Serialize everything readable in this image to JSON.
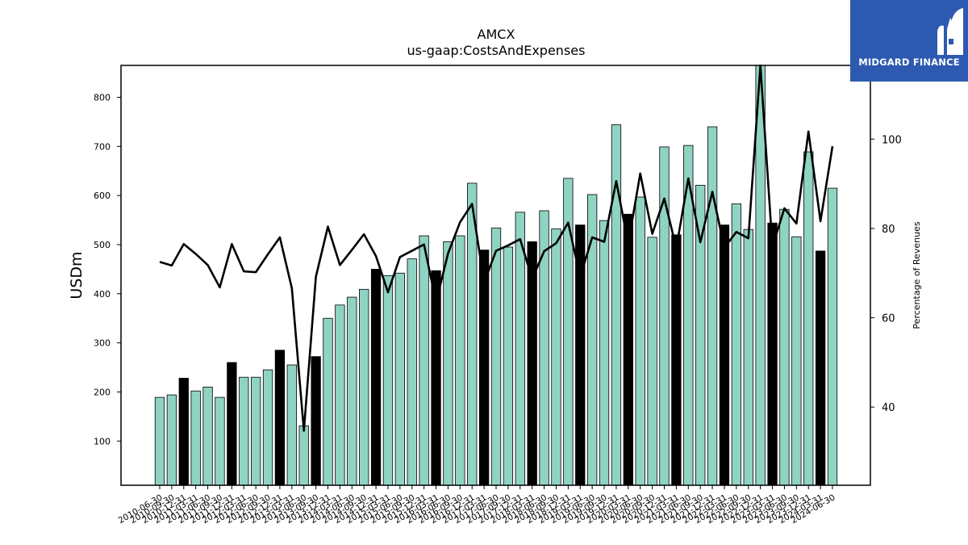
{
  "logo": {
    "text": "MIDGARD FINANCE",
    "background": "#2d5ab0"
  },
  "chart_data": {
    "type": "bar",
    "title": "AMCX",
    "subtitle": "us-gaap:CostsAndExpenses",
    "ylabel": "USDm",
    "y2label": "Percentage of Revenues",
    "ylim": [
      10,
      865
    ],
    "y2lim": [
      22.5,
      116.5
    ],
    "yticks": [
      100,
      200,
      300,
      400,
      500,
      600,
      700,
      800
    ],
    "y2ticks": [
      40,
      60,
      80,
      100
    ],
    "colors": {
      "bar": "#8fd3c3",
      "bar_highlight": "#000000",
      "line": "#000000",
      "edge": "#000000"
    },
    "categories": [
      "2010-06-30",
      "2010-09-30",
      "2010-12-31",
      "2011-03-31",
      "2011-06-30",
      "2011-09-30",
      "2011-12-31",
      "2012-03-31",
      "2012-06-30",
      "2012-09-30",
      "2012-12-31",
      "2013-03-31",
      "2013-06-30",
      "2013-09-30",
      "2013-12-31",
      "2014-03-31",
      "2014-06-30",
      "2014-09-30",
      "2014-12-31",
      "2015-03-31",
      "2015-06-30",
      "2015-09-30",
      "2015-12-31",
      "2016-03-31",
      "2016-06-30",
      "2016-09-30",
      "2016-12-31",
      "2017-03-31",
      "2017-06-30",
      "2017-09-30",
      "2017-12-31",
      "2018-03-31",
      "2018-06-30",
      "2018-09-30",
      "2018-12-31",
      "2019-03-31",
      "2019-06-30",
      "2019-09-30",
      "2019-12-31",
      "2020-03-31",
      "2020-06-30",
      "2020-09-30",
      "2020-12-31",
      "2021-03-31",
      "2021-06-30",
      "2021-09-30",
      "2021-12-31",
      "2022-03-31",
      "2022-06-30",
      "2022-09-30",
      "2022-12-31",
      "2023-03-31",
      "2023-06-30",
      "2023-09-30",
      "2023-12-31",
      "2024-03-31",
      "2024-06-30"
    ],
    "highlight": [
      false,
      false,
      true,
      false,
      false,
      false,
      true,
      false,
      false,
      false,
      true,
      false,
      false,
      true,
      false,
      false,
      false,
      false,
      true,
      false,
      false,
      false,
      false,
      true,
      false,
      false,
      false,
      true,
      false,
      false,
      false,
      true,
      false,
      false,
      false,
      true,
      false,
      false,
      false,
      true,
      false,
      false,
      false,
      true,
      false,
      false,
      false,
      true,
      false,
      false,
      false,
      true,
      false,
      false,
      false,
      true,
      false
    ],
    "series": [
      {
        "type": "bar",
        "axis": "left",
        "values": [
          189,
          194,
          228,
          202,
          210,
          189,
          260,
          230,
          230,
          245,
          285,
          255,
          131,
          272,
          350,
          377,
          393,
          409,
          450,
          437,
          442,
          471,
          518,
          447,
          506,
          518,
          625,
          489,
          534,
          495,
          566,
          506,
          569,
          532,
          635,
          540,
          602,
          549,
          744,
          562,
          597,
          515,
          699,
          520,
          702,
          621,
          740,
          540,
          583,
          531,
          880,
          544,
          572,
          516,
          689,
          487,
          615
        ]
      },
      {
        "type": "line",
        "axis": "right",
        "values": [
          72.5,
          71.7,
          76.5,
          74.3,
          71.8,
          66.8,
          76.5,
          70.4,
          70.2,
          74.2,
          78.0,
          66.6,
          34.7,
          69.2,
          80.4,
          71.8,
          75.2,
          78.7,
          73.8,
          65.7,
          73.6,
          75.0,
          76.4,
          63.5,
          74.4,
          81.4,
          85.5,
          67.9,
          75.0,
          76.2,
          77.6,
          68.7,
          74.9,
          76.7,
          81.3,
          69.1,
          78.0,
          77.0,
          90.6,
          76.6,
          92.3,
          78.8,
          86.7,
          75.6,
          91.2,
          76.9,
          88.2,
          75.7,
          79.2,
          77.8,
          116.5,
          75.9,
          84.5,
          81.1,
          101.7,
          81.6,
          98.4
        ]
      }
    ]
  }
}
